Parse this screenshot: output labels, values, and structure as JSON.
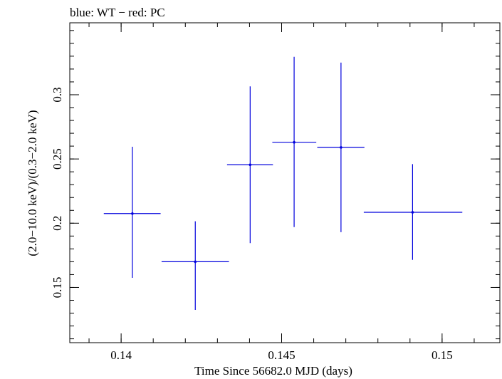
{
  "chart_data": {
    "type": "scatter",
    "title": "blue: WT − red: PC",
    "xlabel": "Time Since 56682.0 MJD (days)",
    "ylabel": "(2.0−10.0 keV)/(0.3−2.0 keV)",
    "xlim": [
      0.1384,
      0.1518
    ],
    "ylim": [
      0.107,
      0.356
    ],
    "x_ticks": [
      {
        "value": 0.14,
        "label": "0.14"
      },
      {
        "value": 0.145,
        "label": "0.145"
      },
      {
        "value": 0.15,
        "label": "0.15"
      }
    ],
    "y_ticks": [
      {
        "value": 0.15,
        "label": "0.15"
      },
      {
        "value": 0.2,
        "label": "0.2"
      },
      {
        "value": 0.25,
        "label": "0.25"
      },
      {
        "value": 0.3,
        "label": "0.3"
      }
    ],
    "x_minor_step": 0.001,
    "y_minor_step": 0.01,
    "grid": false,
    "series": [
      {
        "color": "#0000dd",
        "points": [
          {
            "x": 0.14035,
            "xlo": 0.13946,
            "xhi": 0.14123,
            "y": 0.2075,
            "ylo": 0.1575,
            "yhi": 0.2595
          },
          {
            "x": 0.14231,
            "xlo": 0.14126,
            "xhi": 0.14336,
            "y": 0.17,
            "ylo": 0.1325,
            "yhi": 0.2015
          },
          {
            "x": 0.14402,
            "xlo": 0.1433,
            "xhi": 0.14473,
            "y": 0.2455,
            "ylo": 0.1845,
            "yhi": 0.3065
          },
          {
            "x": 0.14539,
            "xlo": 0.14471,
            "xhi": 0.14608,
            "y": 0.263,
            "ylo": 0.197,
            "yhi": 0.3295
          },
          {
            "x": 0.14685,
            "xlo": 0.14611,
            "xhi": 0.14758,
            "y": 0.259,
            "ylo": 0.193,
            "yhi": 0.325
          },
          {
            "x": 0.14908,
            "xlo": 0.14756,
            "xhi": 0.15063,
            "y": 0.2085,
            "ylo": 0.1715,
            "yhi": 0.246
          }
        ]
      }
    ]
  }
}
